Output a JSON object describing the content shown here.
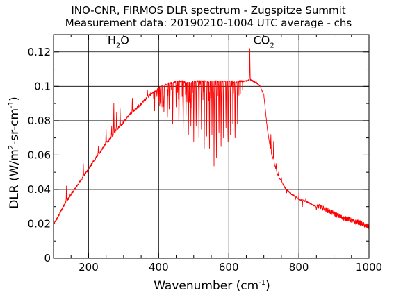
{
  "chart_data": {
    "type": "line",
    "title": "INO-CNR, FIRMOS DLR spectrum - Zugspitze Summit",
    "subtitle": "Measurement data: 20190210-1004 UTC average - chs",
    "xlabel": {
      "main": "Wavenumber (cm",
      "sup": "-1",
      "close": ")"
    },
    "ylabel": {
      "part1": "DLR (W/m",
      "sup1": "2",
      "part2": "-sr-cm",
      "sup2": "-1",
      "close": ")"
    },
    "xlim": [
      100,
      1000
    ],
    "ylim": [
      0,
      0.13
    ],
    "x_ticks": [
      200,
      400,
      600,
      800,
      1000
    ],
    "x_tick_labels": [
      "200",
      "400",
      "600",
      "800",
      "1000"
    ],
    "y_ticks": [
      0,
      0.02,
      0.04,
      0.06,
      0.08,
      0.1,
      0.12
    ],
    "y_tick_labels": [
      "0",
      "0.02",
      "0.04",
      "0.06",
      "0.08",
      "0.1",
      "0.12"
    ],
    "grid": true,
    "annotations": [
      {
        "x": 285,
        "y": 0.1245,
        "main": "H",
        "sub": "2",
        "after": "O"
      },
      {
        "x": 700,
        "y": 0.1245,
        "main": "CO",
        "sub": "2",
        "after": ""
      }
    ],
    "series": [
      {
        "color": "#ff0000",
        "x": [
          100,
          110,
          120,
          130,
          140,
          150,
          160,
          170,
          180,
          190,
          200,
          210,
          220,
          230,
          240,
          250,
          260,
          270,
          280,
          290,
          300,
          310,
          320,
          330,
          340,
          350,
          360,
          370,
          380,
          390,
          400,
          410,
          420,
          430,
          440,
          450,
          460,
          470,
          480,
          490,
          500,
          510,
          520,
          530,
          540,
          550,
          560,
          570,
          580,
          590,
          600,
          610,
          620,
          630,
          640,
          650,
          660,
          670,
          680,
          690,
          700,
          710,
          720,
          730,
          740,
          750,
          760,
          770,
          780,
          790,
          800,
          810,
          820,
          830,
          840,
          850,
          860,
          870,
          880,
          890,
          900,
          910,
          920,
          930,
          940,
          950,
          960,
          970,
          980,
          990,
          1000
        ],
        "y": [
          0.0195,
          0.023,
          0.027,
          0.031,
          0.034,
          0.037,
          0.04,
          0.043,
          0.046,
          0.049,
          0.052,
          0.055,
          0.058,
          0.061,
          0.064,
          0.067,
          0.069,
          0.072,
          0.075,
          0.077,
          0.079,
          0.082,
          0.084,
          0.086,
          0.088,
          0.09,
          0.092,
          0.094,
          0.096,
          0.097,
          0.099,
          0.1,
          0.101,
          0.102,
          0.102,
          0.103,
          0.103,
          0.103,
          0.102,
          0.102,
          0.103,
          0.103,
          0.103,
          0.103,
          0.103,
          0.103,
          0.103,
          0.103,
          0.103,
          0.103,
          0.103,
          0.103,
          0.102,
          0.103,
          0.103,
          0.103,
          0.104,
          0.103,
          0.102,
          0.1,
          0.095,
          0.075,
          0.062,
          0.055,
          0.048,
          0.045,
          0.041,
          0.039,
          0.037,
          0.036,
          0.034,
          0.034,
          0.033,
          0.032,
          0.031,
          0.03,
          0.03,
          0.029,
          0.028,
          0.027,
          0.026,
          0.025,
          0.024,
          0.023,
          0.023,
          0.022,
          0.021,
          0.021,
          0.02,
          0.019,
          0.018
        ],
        "spikes_up": [
          {
            "x": 137,
            "y": 0.042
          },
          {
            "x": 185,
            "y": 0.055
          },
          {
            "x": 228,
            "y": 0.065
          },
          {
            "x": 250,
            "y": 0.075
          },
          {
            "x": 266,
            "y": 0.077
          },
          {
            "x": 272,
            "y": 0.09
          },
          {
            "x": 280,
            "y": 0.085
          },
          {
            "x": 290,
            "y": 0.087
          },
          {
            "x": 325,
            "y": 0.093
          },
          {
            "x": 368,
            "y": 0.098
          },
          {
            "x": 660,
            "y": 0.122
          }
        ],
        "dips": [
          {
            "x": 395,
            "y": 0.094
          },
          {
            "x": 405,
            "y": 0.09
          },
          {
            "x": 415,
            "y": 0.085
          },
          {
            "x": 425,
            "y": 0.082
          },
          {
            "x": 430,
            "y": 0.087
          },
          {
            "x": 440,
            "y": 0.078
          },
          {
            "x": 450,
            "y": 0.088
          },
          {
            "x": 458,
            "y": 0.082
          },
          {
            "x": 470,
            "y": 0.075
          },
          {
            "x": 478,
            "y": 0.083
          },
          {
            "x": 485,
            "y": 0.072
          },
          {
            "x": 492,
            "y": 0.08
          },
          {
            "x": 500,
            "y": 0.068
          },
          {
            "x": 507,
            "y": 0.077
          },
          {
            "x": 515,
            "y": 0.07
          },
          {
            "x": 522,
            "y": 0.075
          },
          {
            "x": 530,
            "y": 0.064
          },
          {
            "x": 537,
            "y": 0.071
          },
          {
            "x": 545,
            "y": 0.064
          },
          {
            "x": 552,
            "y": 0.072
          },
          {
            "x": 558,
            "y": 0.062
          },
          {
            "x": 565,
            "y": 0.066
          },
          {
            "x": 572,
            "y": 0.073
          },
          {
            "x": 578,
            "y": 0.065
          },
          {
            "x": 585,
            "y": 0.07
          },
          {
            "x": 592,
            "y": 0.076
          },
          {
            "x": 598,
            "y": 0.068
          },
          {
            "x": 605,
            "y": 0.072
          },
          {
            "x": 612,
            "y": 0.079
          },
          {
            "x": 618,
            "y": 0.07
          },
          {
            "x": 625,
            "y": 0.078
          },
          {
            "x": 720,
            "y": 0.072
          },
          {
            "x": 728,
            "y": 0.068
          },
          {
            "x": 735,
            "y": 0.055
          },
          {
            "x": 742,
            "y": 0.05
          },
          {
            "x": 750,
            "y": 0.047
          },
          {
            "x": 765,
            "y": 0.038
          },
          {
            "x": 775,
            "y": 0.039
          },
          {
            "x": 790,
            "y": 0.034
          },
          {
            "x": 800,
            "y": 0.038
          },
          {
            "x": 810,
            "y": 0.03
          },
          {
            "x": 820,
            "y": 0.035
          },
          {
            "x": 850,
            "y": 0.028
          }
        ]
      }
    ]
  }
}
